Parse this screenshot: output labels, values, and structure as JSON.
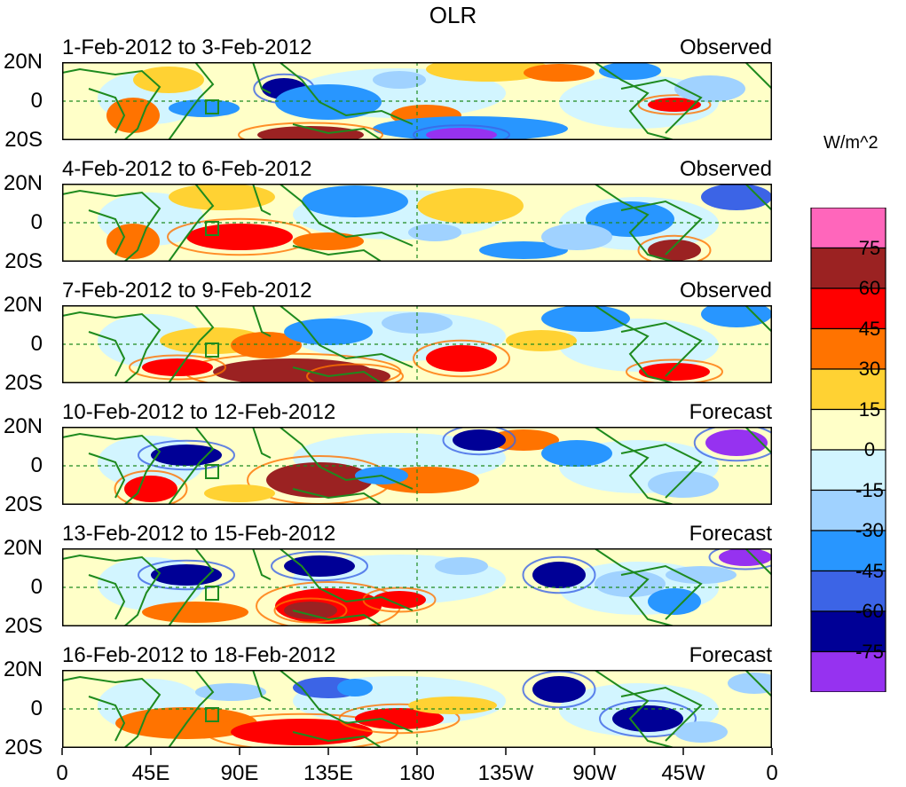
{
  "title": "OLR",
  "units": "W/m^2",
  "lat_labels": {
    "north": "20N",
    "equator": "0",
    "south": "20S"
  },
  "x_ticks": [
    "0",
    "45E",
    "90E",
    "135E",
    "180",
    "135W",
    "90W",
    "45W",
    "0"
  ],
  "colorbar": {
    "colors": [
      "#ff66bb",
      "#9b2222",
      "#ff0000",
      "#ff7300",
      "#ffd233",
      "#ffffc8",
      "#d2f5ff",
      "#a0d2ff",
      "#2896ff",
      "#3c64e6",
      "#000096",
      "#9632f0"
    ],
    "labels": [
      "75",
      "60",
      "45",
      "30",
      "15",
      "0",
      "-15",
      "-30",
      "-45",
      "-60",
      "-75"
    ]
  },
  "panels": [
    {
      "period": "1-Feb-2012 to 3-Feb-2012",
      "type": "Observed"
    },
    {
      "period": "4-Feb-2012 to 6-Feb-2012",
      "type": "Observed"
    },
    {
      "period": "7-Feb-2012 to 9-Feb-2012",
      "type": "Observed"
    },
    {
      "period": "10-Feb-2012 to 12-Feb-2012",
      "type": "Forecast"
    },
    {
      "period": "13-Feb-2012 to 15-Feb-2012",
      "type": "Forecast"
    },
    {
      "period": "16-Feb-2012 to 18-Feb-2012",
      "type": "Forecast"
    }
  ]
}
